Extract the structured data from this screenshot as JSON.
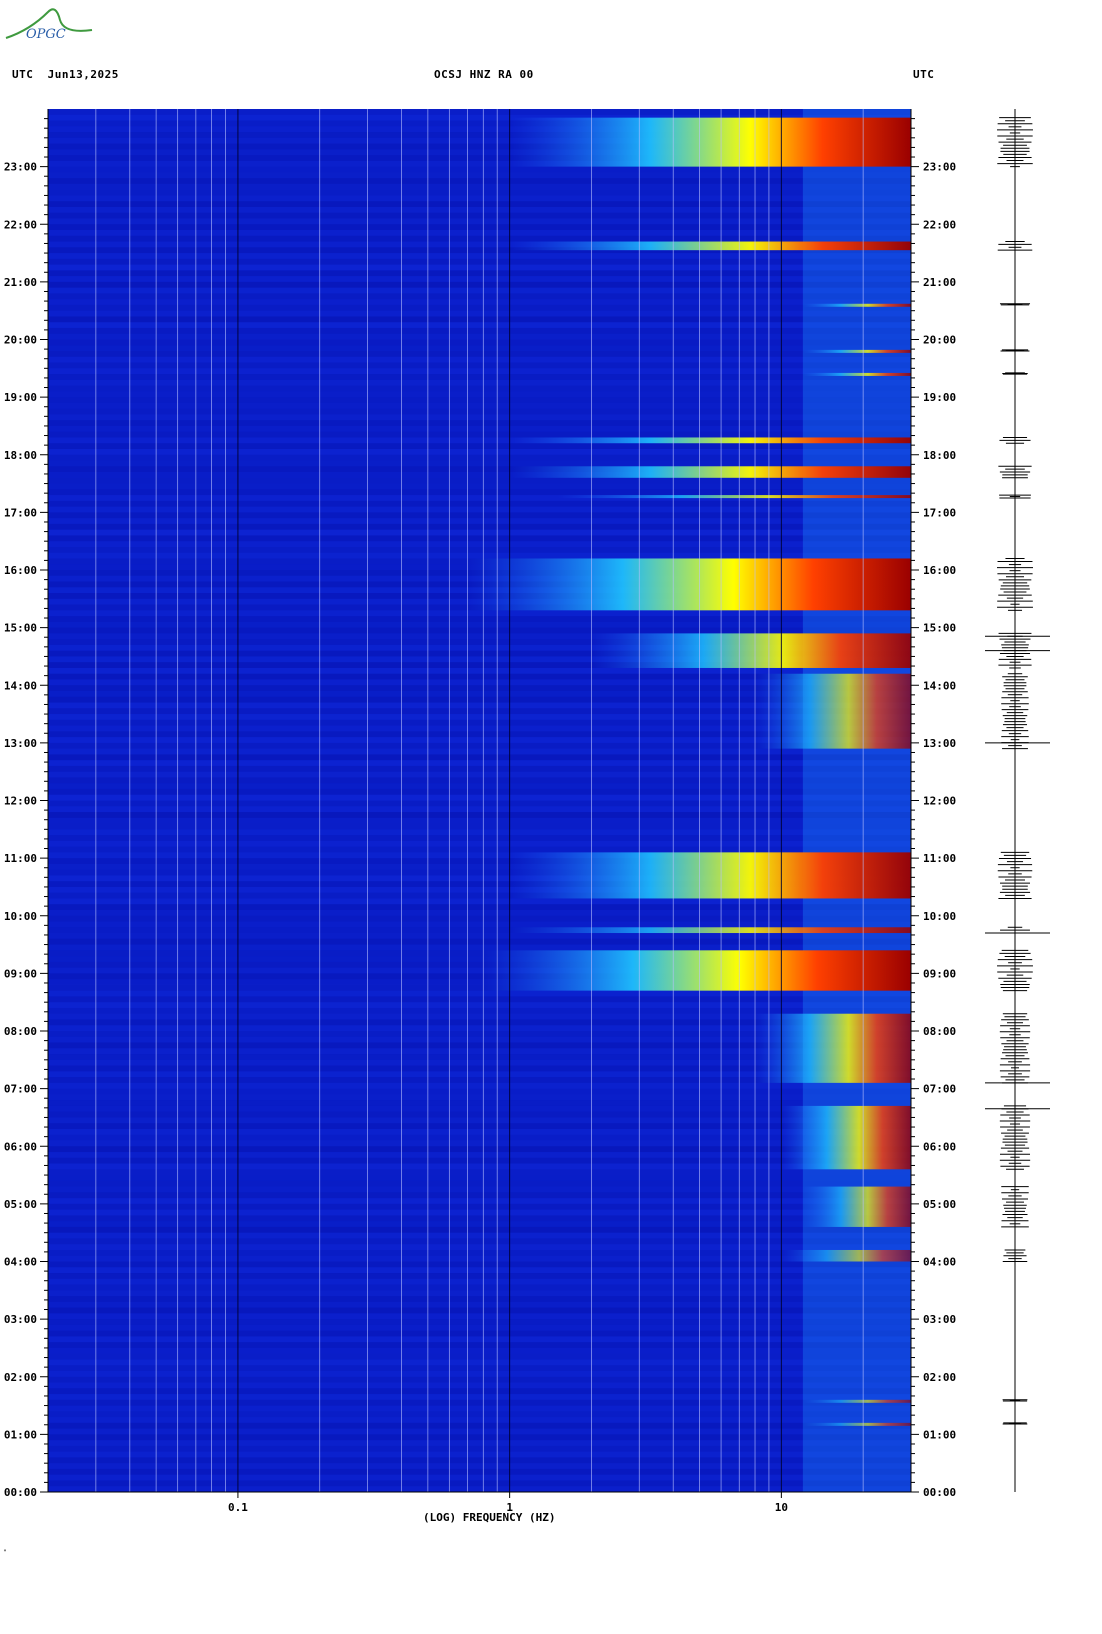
{
  "header": {
    "left": "UTC  Jun13,2025",
    "station": "OCSJ HNZ RA 00",
    "right": "UTC"
  },
  "logo": {
    "text": "OPGC"
  },
  "footer_mark": "\"",
  "chart_data": {
    "type": "heatmap",
    "title": "OCSJ HNZ RA 00",
    "xlabel": "(LOG) FREQUENCY (HZ)",
    "ylabel": "UTC",
    "x_scale": "log",
    "xlim": [
      0.02,
      30
    ],
    "x_ticks": [
      {
        "value": 0.1,
        "label": "0.1"
      },
      {
        "value": 1,
        "label": "1"
      },
      {
        "value": 10,
        "label": "10"
      }
    ],
    "ylim_hours": [
      0,
      24
    ],
    "y_ticks": [
      {
        "hour": 0,
        "label": "00:00"
      },
      {
        "hour": 1,
        "label": "01:00"
      },
      {
        "hour": 2,
        "label": "02:00"
      },
      {
        "hour": 3,
        "label": "03:00"
      },
      {
        "hour": 4,
        "label": "04:00"
      },
      {
        "hour": 5,
        "label": "05:00"
      },
      {
        "hour": 6,
        "label": "06:00"
      },
      {
        "hour": 7,
        "label": "07:00"
      },
      {
        "hour": 8,
        "label": "08:00"
      },
      {
        "hour": 9,
        "label": "09:00"
      },
      {
        "hour": 10,
        "label": "10:00"
      },
      {
        "hour": 11,
        "label": "11:00"
      },
      {
        "hour": 12,
        "label": "12:00"
      },
      {
        "hour": 13,
        "label": "13:00"
      },
      {
        "hour": 14,
        "label": "14:00"
      },
      {
        "hour": 15,
        "label": "15:00"
      },
      {
        "hour": 16,
        "label": "16:00"
      },
      {
        "hour": 17,
        "label": "17:00"
      },
      {
        "hour": 18,
        "label": "18:00"
      },
      {
        "hour": 19,
        "label": "19:00"
      },
      {
        "hour": 20,
        "label": "20:00"
      },
      {
        "hour": 21,
        "label": "21:00"
      },
      {
        "hour": 22,
        "label": "22:00"
      },
      {
        "hour": 23,
        "label": "23:00"
      }
    ],
    "colormap": [
      "#0000b4",
      "#0020e0",
      "#1e6cff",
      "#20c8ff",
      "#80ff80",
      "#ffff00",
      "#ff4000",
      "#9a0000"
    ],
    "background_color": "#0a1ec8",
    "events": [
      {
        "start_hour": 23.0,
        "end_hour": 23.85,
        "fmin": 1.0,
        "intensity": 1.0
      },
      {
        "start_hour": 21.55,
        "end_hour": 21.7,
        "fmin": 1.0,
        "intensity": 0.95
      },
      {
        "start_hour": 20.6,
        "end_hour": 20.62,
        "fmin": 12,
        "intensity": 0.8
      },
      {
        "start_hour": 19.8,
        "end_hour": 19.82,
        "fmin": 12,
        "intensity": 0.8
      },
      {
        "start_hour": 19.4,
        "end_hour": 19.42,
        "fmin": 12,
        "intensity": 0.8
      },
      {
        "start_hour": 18.2,
        "end_hour": 18.3,
        "fmin": 1.0,
        "intensity": 0.95
      },
      {
        "start_hour": 17.6,
        "end_hour": 17.8,
        "fmin": 1.0,
        "intensity": 0.95
      },
      {
        "start_hour": 17.25,
        "end_hour": 17.3,
        "fmin": 1.5,
        "intensity": 0.85
      },
      {
        "start_hour": 15.3,
        "end_hour": 16.2,
        "fmin": 0.7,
        "intensity": 1.0
      },
      {
        "start_hour": 14.3,
        "end_hour": 14.9,
        "fmin": 2.0,
        "intensity": 0.9
      },
      {
        "start_hour": 12.9,
        "end_hour": 14.2,
        "fmin": 8,
        "intensity": 0.7
      },
      {
        "start_hour": 10.3,
        "end_hour": 11.1,
        "fmin": 1.0,
        "intensity": 0.95
      },
      {
        "start_hour": 9.7,
        "end_hour": 9.8,
        "fmin": 1.0,
        "intensity": 0.85
      },
      {
        "start_hour": 8.7,
        "end_hour": 9.4,
        "fmin": 0.8,
        "intensity": 1.0
      },
      {
        "start_hour": 7.1,
        "end_hour": 8.3,
        "fmin": 8,
        "intensity": 0.8
      },
      {
        "start_hour": 5.6,
        "end_hour": 6.7,
        "fmin": 10,
        "intensity": 0.8
      },
      {
        "start_hour": 4.6,
        "end_hour": 5.3,
        "fmin": 12,
        "intensity": 0.7
      },
      {
        "start_hour": 4.0,
        "end_hour": 4.2,
        "fmin": 10,
        "intensity": 0.6
      },
      {
        "start_hour": 1.58,
        "end_hour": 1.6,
        "fmin": 12,
        "intensity": 0.6
      },
      {
        "start_hour": 1.18,
        "end_hour": 1.2,
        "fmin": 12,
        "intensity": 0.6
      }
    ]
  }
}
